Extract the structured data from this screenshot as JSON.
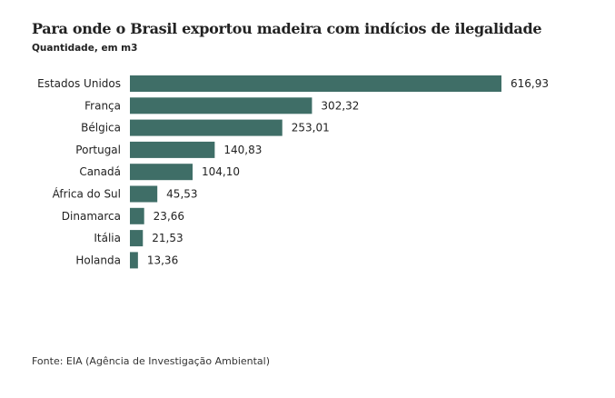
{
  "chart_data": {
    "type": "bar",
    "title": "Para onde o Brasil exportou madeira com indícios de ilegalidade",
    "subtitle": "Quantidade, em m3",
    "categories": [
      "Estados Unidos",
      "França",
      "Bélgica",
      "Portugal",
      "Canadá",
      "África do Sul",
      "Dinamarca",
      "Itália",
      "Holanda"
    ],
    "values": [
      616.93,
      302.32,
      253.01,
      140.83,
      104.1,
      45.53,
      23.66,
      21.53,
      13.36
    ],
    "labels": [
      "616,93",
      "302,32",
      "253,01",
      "140,83",
      "104,10",
      "45,53",
      "23,66",
      "21,53",
      "13,36"
    ],
    "xlim": [
      0,
      616.93
    ],
    "bar_color": "#3f6e67",
    "source": "Fonte: EIA (Agência de Investigação Ambiental)"
  }
}
